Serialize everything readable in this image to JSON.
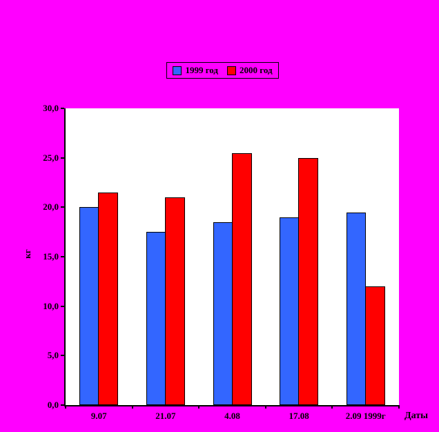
{
  "chart_data": {
    "type": "bar",
    "title": "",
    "categories": [
      "9.07",
      "21.07",
      "4.08",
      "17.08",
      "2.09 1999г"
    ],
    "series": [
      {
        "name": "1999 год",
        "color": "#3366FF",
        "values": [
          20.0,
          17.5,
          18.5,
          19.0,
          19.5
        ]
      },
      {
        "name": "2000 год",
        "color": "#FF0000",
        "values": [
          21.5,
          21.0,
          25.5,
          25.0,
          12.0
        ]
      }
    ],
    "xlabel": "Даты",
    "ylabel": "кг",
    "ylim": [
      0,
      30
    ],
    "ytick_step": 5,
    "ytick_labels": [
      "0,0",
      "5,0",
      "10,0",
      "15,0",
      "20,0",
      "25,0",
      "30,0"
    ],
    "legend_position": "top-center",
    "grid": false,
    "background_color": "#FF00FF",
    "plot_background_color": "#FFFFFF"
  }
}
